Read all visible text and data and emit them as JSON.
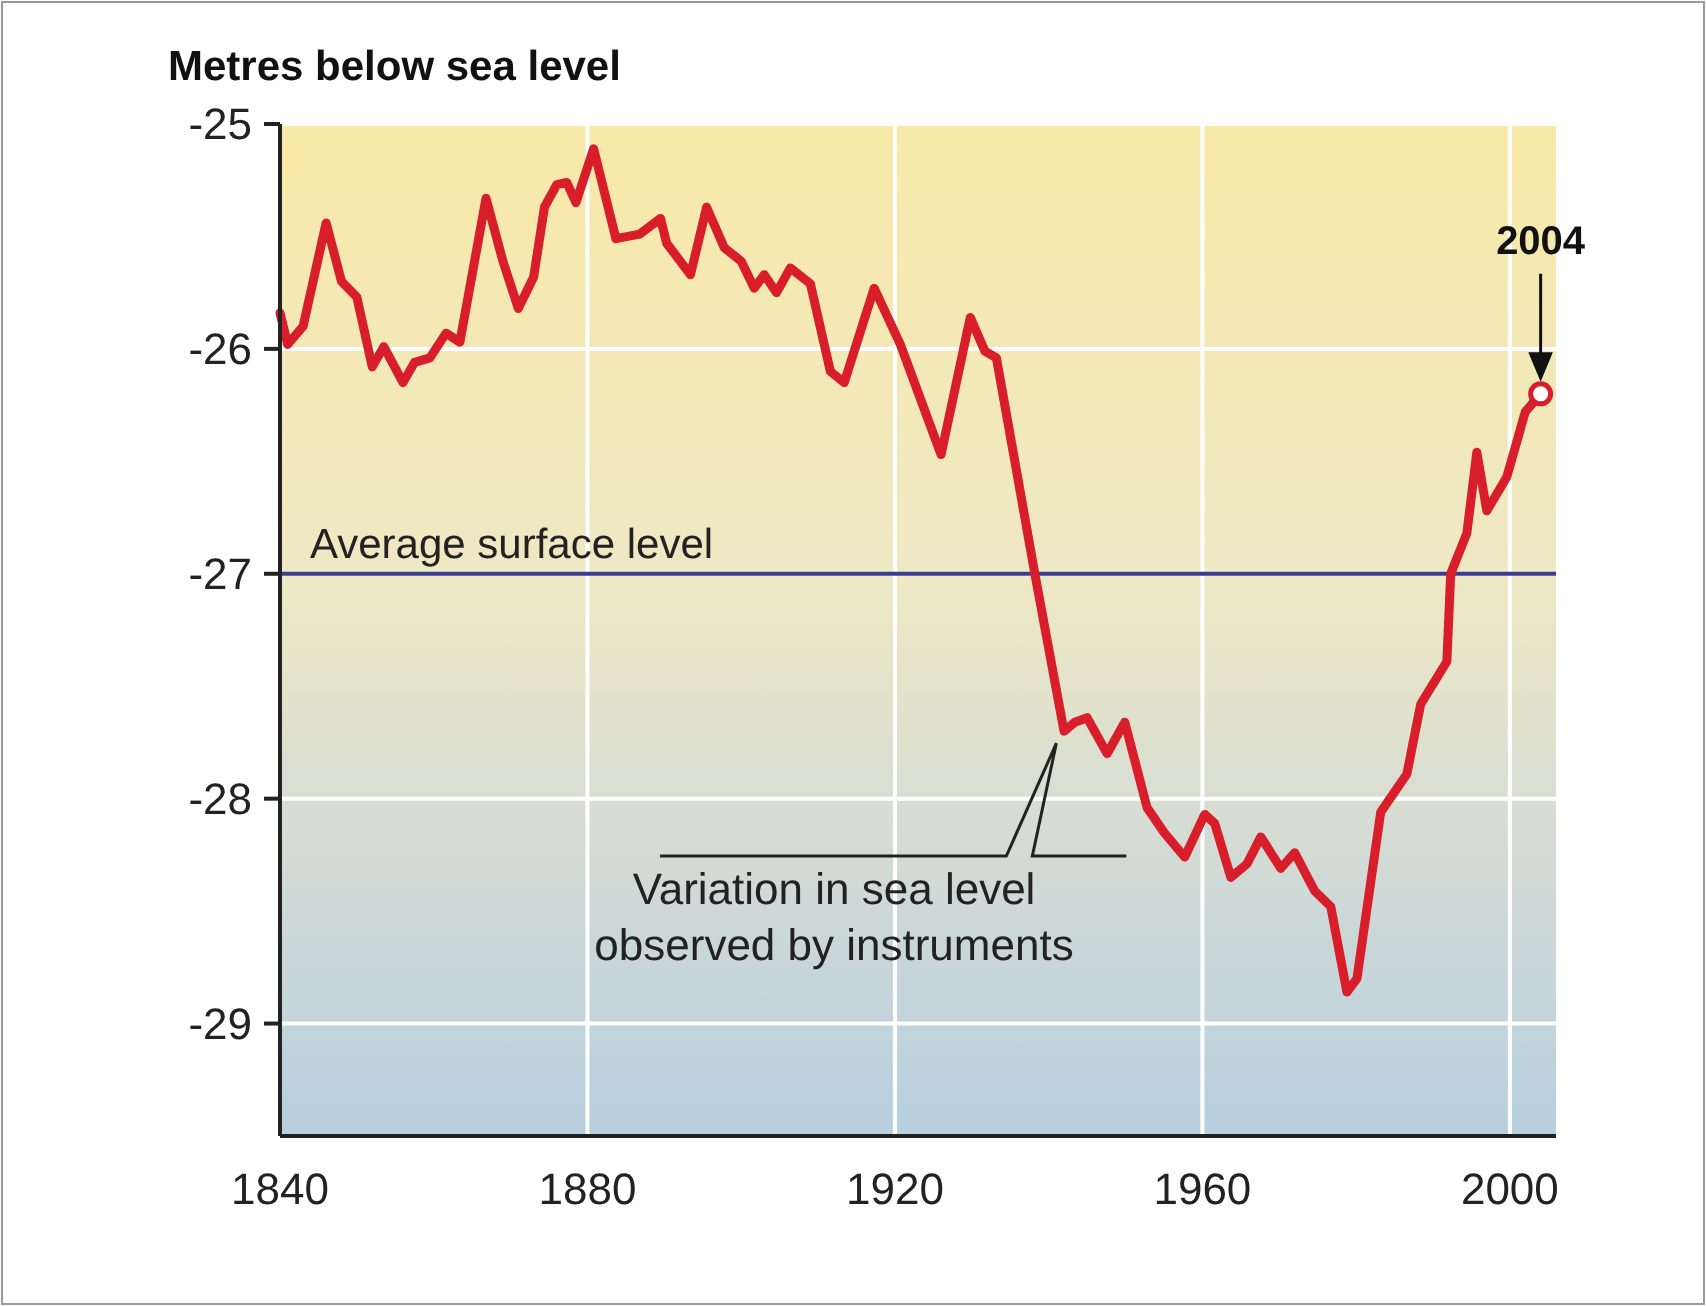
{
  "chart_data": {
    "type": "line",
    "ylabel": "Metres below sea level",
    "series": [
      {
        "color": "#d81e2a",
        "x": [
          1840,
          1841,
          1843,
          1846,
          1848,
          1850,
          1852,
          1853.5,
          1856,
          1857.5,
          1859.5,
          1861.6,
          1863.4,
          1866.8,
          1869,
          1871,
          1873,
          1874.4,
          1876,
          1877.3,
          1878.5,
          1880.8,
          1883.7,
          1886.8,
          1889.5,
          1890.3,
          1893.4,
          1895.5,
          1897.8,
          1900,
          1901.7,
          1903,
          1904.6,
          1906.4,
          1909,
          1911.6,
          1913.4,
          1917.3,
          1920.7,
          1926,
          1929.8,
          1931.7,
          1933.2,
          1938.2,
          1942,
          1943.4,
          1945,
          1947.6,
          1949.9,
          1952.8,
          1955,
          1957.7,
          1960.3,
          1961.6,
          1963.7,
          1965.8,
          1967.6,
          1970.2,
          1972,
          1974.6,
          1976.7,
          1978.8,
          1980.1,
          1983.2,
          1986.6,
          1988.4,
          1991.8,
          1992.3,
          1994.4,
          1995.7,
          1997,
          1999.6,
          2002,
          2004
        ],
        "values": [
          -25.84,
          -25.98,
          -25.9,
          -25.44,
          -25.7,
          -25.77,
          -26.08,
          -25.99,
          -26.15,
          -26.06,
          -26.04,
          -25.93,
          -25.97,
          -25.33,
          -25.61,
          -25.82,
          -25.68,
          -25.37,
          -25.27,
          -25.26,
          -25.35,
          -25.11,
          -25.51,
          -25.49,
          -25.42,
          -25.53,
          -25.67,
          -25.37,
          -25.55,
          -25.61,
          -25.73,
          -25.67,
          -25.75,
          -25.64,
          -25.71,
          -26.1,
          -26.15,
          -25.73,
          -25.98,
          -26.47,
          -25.86,
          -26.01,
          -26.04,
          -27.0,
          -27.7,
          -27.66,
          -27.64,
          -27.8,
          -27.66,
          -28.04,
          -28.15,
          -28.26,
          -28.07,
          -28.11,
          -28.35,
          -28.29,
          -28.17,
          -28.31,
          -28.24,
          -28.41,
          -28.48,
          -28.86,
          -28.8,
          -28.06,
          -27.89,
          -27.58,
          -27.39,
          -27.0,
          -26.82,
          -26.46,
          -26.72,
          -26.57,
          -26.28,
          -26.2
        ]
      }
    ],
    "xlim": [
      1840,
      2006
    ],
    "xticks": [
      1840,
      1880,
      1920,
      1960,
      2000
    ],
    "ylim": [
      -29.5,
      -25
    ],
    "yticks": [
      -25,
      -26,
      -27,
      -28,
      -29
    ],
    "grid": true,
    "line_style": "solid",
    "marker": "none",
    "ref_lines": [
      {
        "axis": "y",
        "value": -27,
        "label": "Average surface level",
        "color": "#3b3b8f"
      }
    ],
    "annotations": [
      "2004",
      "Variation in sea level\nobserved by instruments"
    ]
  }
}
